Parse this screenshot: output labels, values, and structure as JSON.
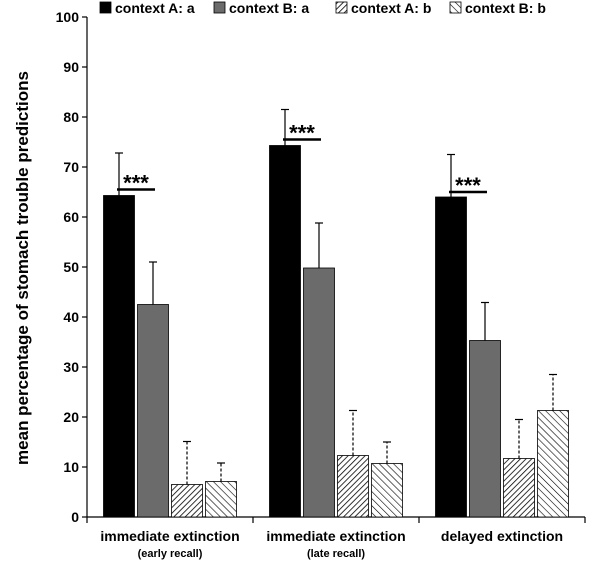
{
  "chart_data": {
    "type": "bar",
    "title": "",
    "ylabel": "mean percentage of stomach trouble predictions",
    "xlabel": "",
    "ylim": [
      0,
      100
    ],
    "yticks": [
      0,
      10,
      20,
      30,
      40,
      50,
      60,
      70,
      80,
      90,
      100
    ],
    "grid": false,
    "legend_position": "top",
    "categories": [
      {
        "label": "immediate extinction",
        "sublabel": "(early recall)"
      },
      {
        "label": "immediate extinction",
        "sublabel": "(late recall)"
      },
      {
        "label": "delayed extinction",
        "sublabel": ""
      }
    ],
    "series": [
      {
        "name": "context A: a",
        "fill": "solid",
        "color": "#000000",
        "errorbar_style": "solid",
        "values": [
          64.3,
          74.3,
          64.0
        ],
        "errors": [
          8.5,
          7.2,
          8.5
        ]
      },
      {
        "name": "context B: a",
        "fill": "solid",
        "color": "#6b6b6b",
        "errorbar_style": "solid",
        "values": [
          42.5,
          49.8,
          35.3
        ],
        "errors": [
          8.5,
          9.0,
          7.6
        ]
      },
      {
        "name": "context A: b",
        "fill": "hatch-dense",
        "color": "#000000",
        "errorbar_style": "dashed",
        "values": [
          6.5,
          12.3,
          11.7
        ],
        "errors": [
          8.6,
          9.0,
          7.8
        ]
      },
      {
        "name": "context B: b",
        "fill": "hatch-sparse",
        "color": "#000000",
        "errorbar_style": "dashed",
        "values": [
          7.1,
          10.7,
          21.3
        ],
        "errors": [
          3.7,
          4.3,
          7.2
        ]
      }
    ],
    "annotations": [
      {
        "text": "***",
        "category_index": 0,
        "between_series": [
          0,
          1
        ],
        "y": 66.5
      },
      {
        "text": "***",
        "category_index": 1,
        "between_series": [
          0,
          1
        ],
        "y": 76.5
      },
      {
        "text": "***",
        "category_index": 2,
        "between_series": [
          0,
          1
        ],
        "y": 66.0
      }
    ]
  }
}
